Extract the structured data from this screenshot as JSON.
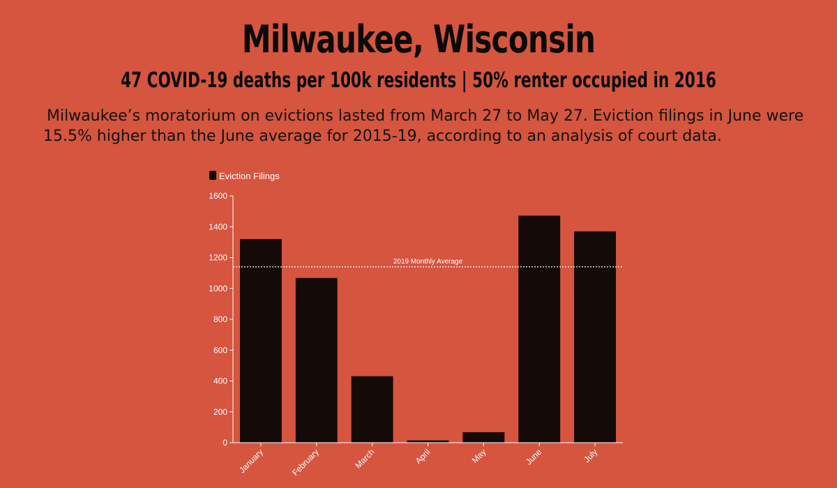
{
  "header": {
    "title": "Milwaukee, Wisconsin",
    "subtitle": "47 COVID-19 deaths per 100k residents | 50% renter occupied in 2016",
    "description": "Milwaukee’s moratorium on evictions lasted from March 27 to May 27. Eviction filings in June were 15.5% higher than the June average for 2015-19, according to an analysis of court data."
  },
  "colors": {
    "background": "#d5553f",
    "bar": "#140a08",
    "axis": "#ffffff",
    "reference_line": "#ffffff"
  },
  "chart_data": {
    "type": "bar",
    "categories": [
      "January",
      "February",
      "March",
      "April",
      "May",
      "June",
      "July"
    ],
    "series": [
      {
        "name": "Eviction Filings",
        "values": [
          1320,
          1068,
          431,
          15,
          68,
          1472,
          1370
        ]
      }
    ],
    "ylim": [
      0,
      1600
    ],
    "yticks": [
      0,
      200,
      400,
      600,
      800,
      1000,
      1200,
      1400,
      1600
    ],
    "reference_lines": [
      {
        "label": "2019 Monthly Average",
        "value": 1140
      }
    ],
    "legend_position": "top-left",
    "grid": false
  }
}
